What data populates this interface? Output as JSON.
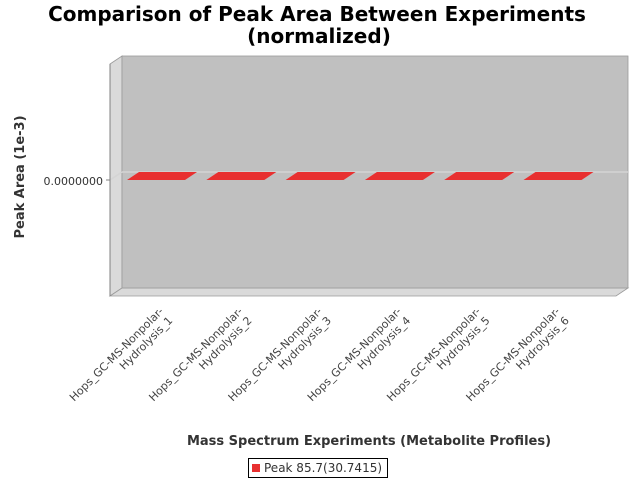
{
  "chart_data": {
    "type": "bar",
    "title": "Comparison of Peak Area Between Experiments (normalized)",
    "title_lines": [
      "Comparison of Peak Area Between Experiments",
      "(normalized)"
    ],
    "xlabel": "Mass Spectrum Experiments (Metabolite Profiles)",
    "ylabel": "Peak Area (1e-3)",
    "y_ticks": [
      0
    ],
    "y_tick_labels": [
      "0.0000000"
    ],
    "categories": [
      "Hops_GC-MS-Nonpolar-Hydrolysis_1",
      "Hops_GC-MS-Nonpolar-Hydrolysis_2",
      "Hops_GC-MS-Nonpolar-Hydrolysis_3",
      "Hops_GC-MS-Nonpolar-Hydrolysis_4",
      "Hops_GC-MS-Nonpolar-Hydrolysis_5",
      "Hops_GC-MS-Nonpolar-Hydrolysis_6"
    ],
    "category_lines": [
      [
        "Hops_GC-MS-Nonpolar-",
        "Hydrolysis_1"
      ],
      [
        "Hops_GC-MS-Nonpolar-",
        "Hydrolysis_2"
      ],
      [
        "Hops_GC-MS-Nonpolar-",
        "Hydrolysis_3"
      ],
      [
        "Hops_GC-MS-Nonpolar-",
        "Hydrolysis_4"
      ],
      [
        "Hops_GC-MS-Nonpolar-",
        "Hydrolysis_5"
      ],
      [
        "Hops_GC-MS-Nonpolar-",
        "Hydrolysis_6"
      ]
    ],
    "series": [
      {
        "name": "Peak 85.7(30.7415)",
        "color": "#e83030",
        "values": [
          0,
          0,
          0,
          0,
          0,
          0
        ]
      }
    ],
    "style_3d": true,
    "grid": false,
    "legend_position": "bottom",
    "plot_background": "#c0c0c0"
  }
}
